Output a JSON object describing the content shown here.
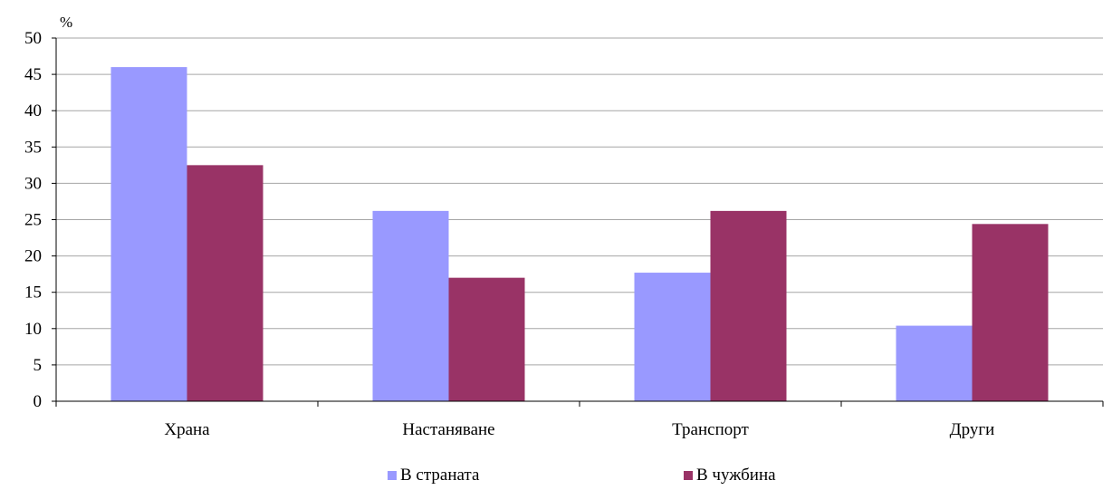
{
  "chart_data": {
    "type": "bar",
    "unit_label": "%",
    "categories": [
      "Храна",
      "Настаняване",
      "Транспорт",
      "Други"
    ],
    "series": [
      {
        "name": "В страната",
        "color": "#9999FF",
        "values": [
          46.0,
          26.2,
          17.7,
          10.4
        ]
      },
      {
        "name": "В чужбина",
        "color": "#993366",
        "values": [
          32.5,
          17.0,
          26.2,
          24.4
        ]
      }
    ],
    "ylim": [
      0,
      50
    ],
    "yticks": [
      0,
      5,
      10,
      15,
      20,
      25,
      30,
      35,
      40,
      45,
      50
    ],
    "grid": true,
    "legend_position": "bottom"
  }
}
